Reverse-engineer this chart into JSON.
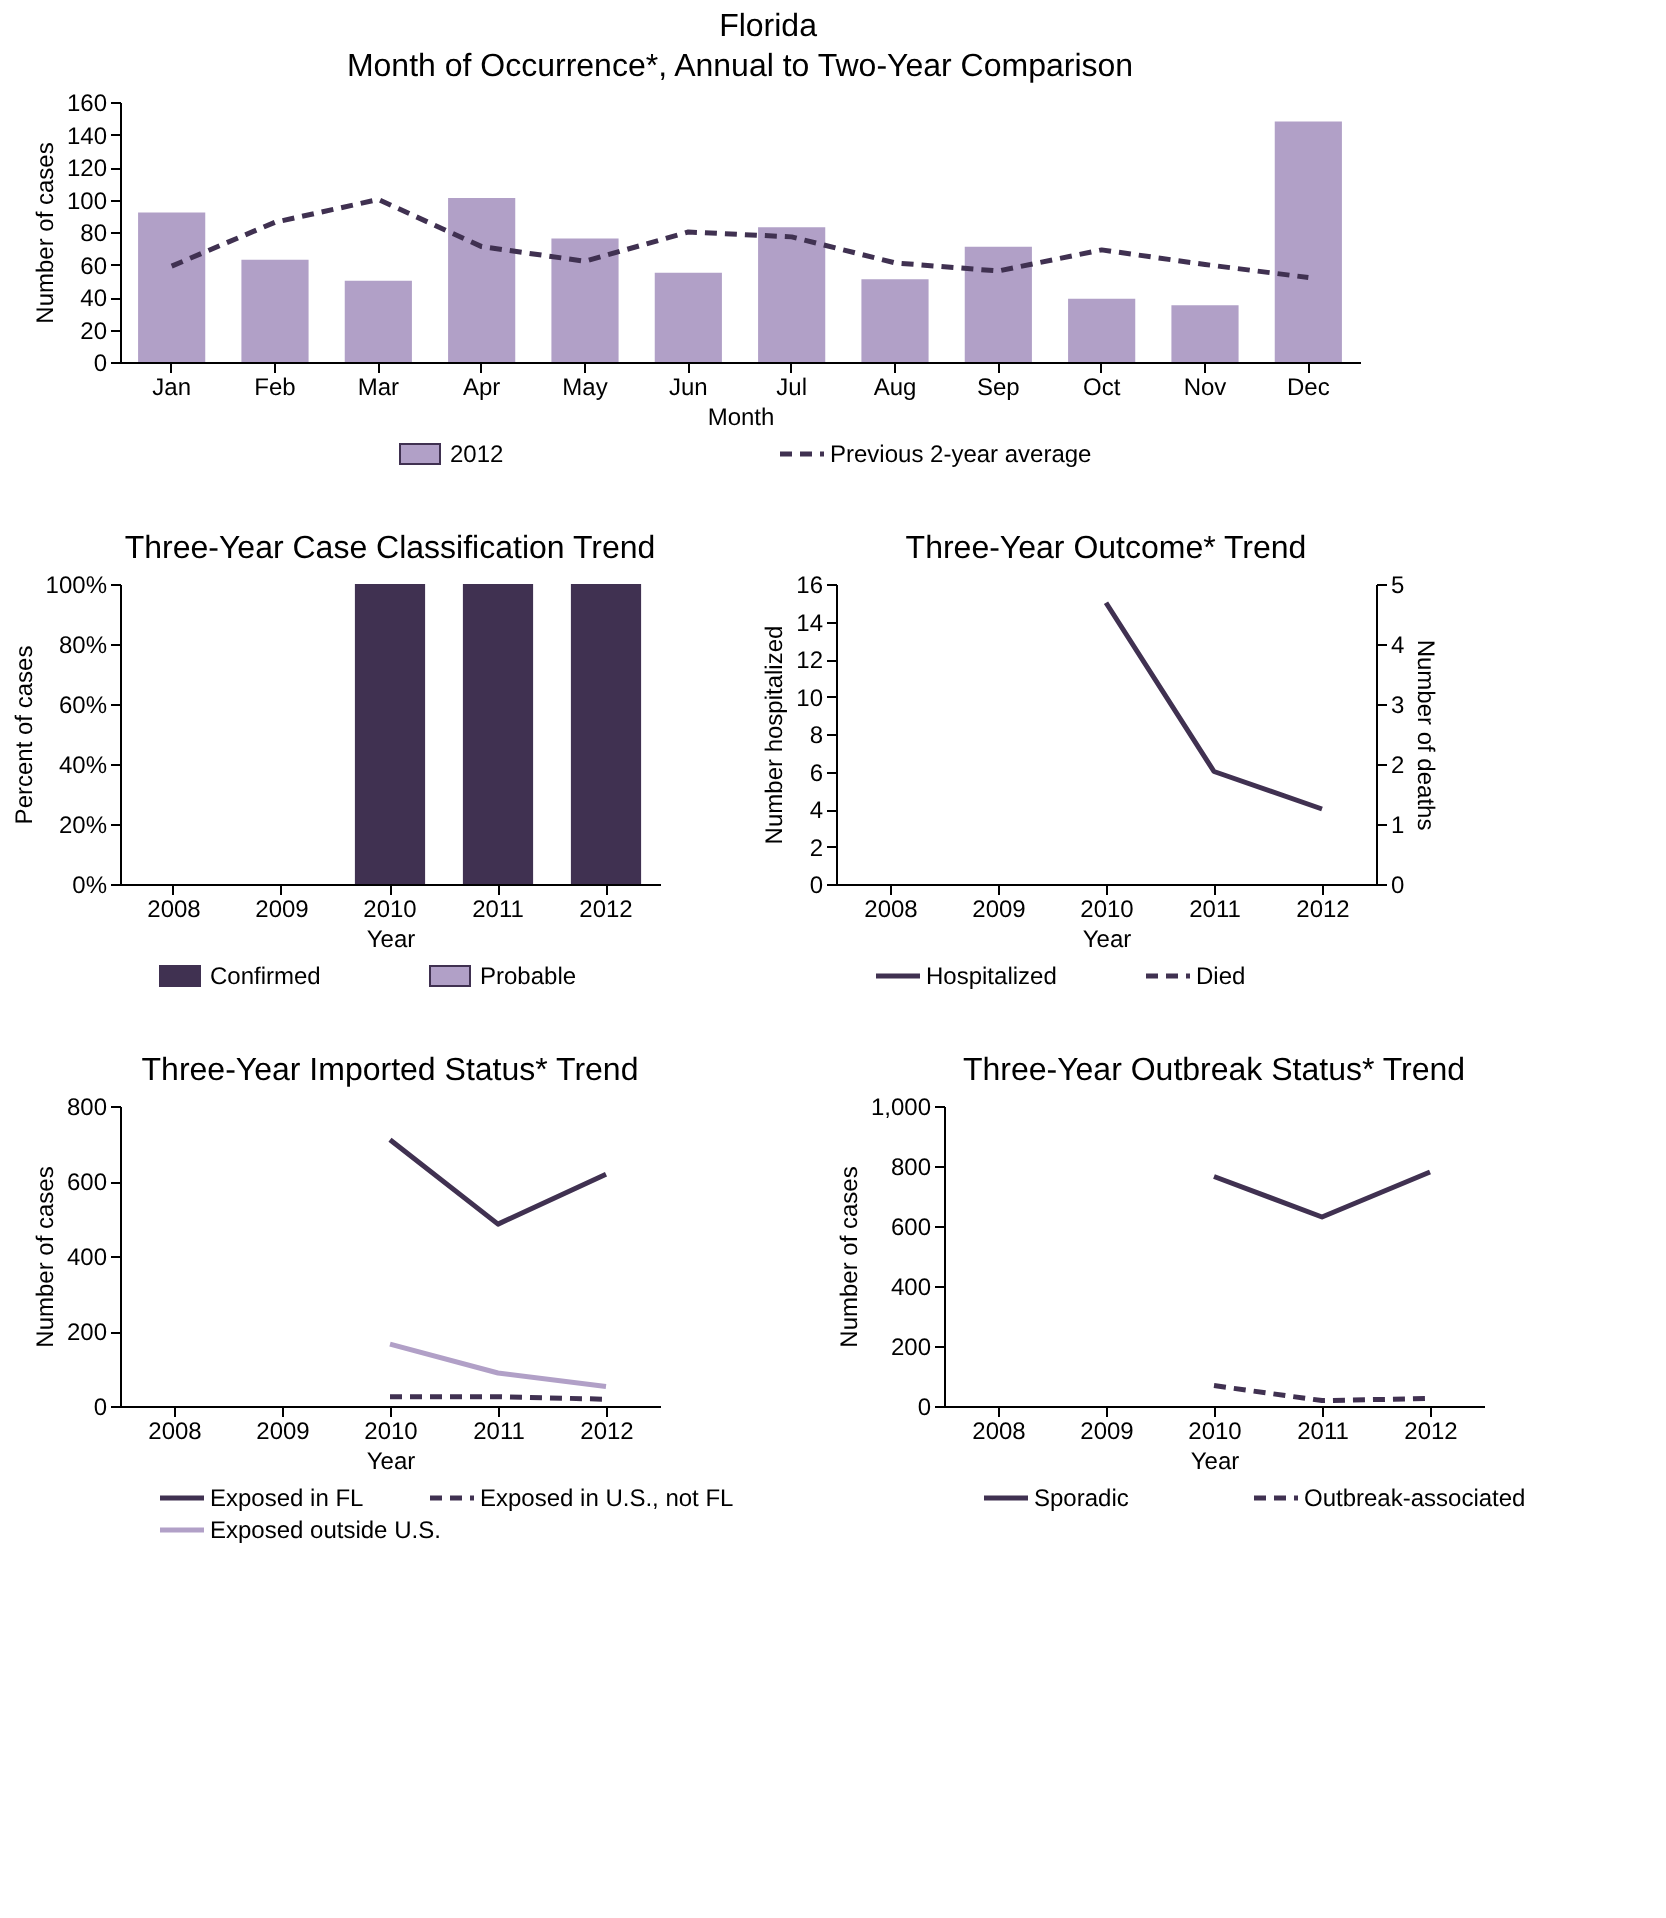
{
  "chart_data": [
    {
      "type": "bar",
      "title": "Month of Occurrence*, Annual to Two-Year Comparison",
      "annotations": [
        "Florida"
      ],
      "xlabel": "Month",
      "ylabel": "Number of cases",
      "categories": [
        "Jan",
        "Feb",
        "Mar",
        "Apr",
        "May",
        "Jun",
        "Jul",
        "Aug",
        "Sep",
        "Oct",
        "Nov",
        "Dec"
      ],
      "series": [
        {
          "name": "2012",
          "type": "bar",
          "color": "#b1a0c7",
          "values": [
            92,
            63,
            50,
            101,
            76,
            55,
            83,
            51,
            71,
            39,
            35,
            148
          ]
        },
        {
          "name": "Previous 2-year average",
          "type": "line",
          "line_style": "dashed",
          "color": "#403151",
          "values": [
            59,
            86,
            100,
            71,
            62,
            80,
            77,
            61,
            56,
            69,
            60,
            52
          ]
        }
      ],
      "ylim": [
        0,
        160
      ],
      "yticks": [
        0,
        20,
        40,
        60,
        80,
        100,
        120,
        140,
        160
      ],
      "legend": "bottom"
    },
    {
      "type": "bar",
      "stacked": true,
      "title": "Three-Year Case Classification Trend",
      "xlabel": "Year",
      "ylabel": "Percent of cases",
      "categories": [
        "2008",
        "2009",
        "2010",
        "2011",
        "2012"
      ],
      "series": [
        {
          "name": "Confirmed",
          "color": "#403151",
          "values": [
            null,
            null,
            100,
            100,
            100
          ]
        },
        {
          "name": "Probable",
          "color": "#b1a0c7",
          "values": [
            null,
            null,
            0,
            0,
            0
          ]
        }
      ],
      "ylim": [
        0,
        100
      ],
      "yticks": [
        {
          "value": 0,
          "label": "0%"
        },
        {
          "value": 20,
          "label": "20%"
        },
        {
          "value": 40,
          "label": "40%"
        },
        {
          "value": 60,
          "label": "60%"
        },
        {
          "value": 80,
          "label": "80%"
        },
        {
          "value": 100,
          "label": "100%"
        }
      ],
      "legend": "bottom"
    },
    {
      "type": "line",
      "title": "Three-Year Outcome* Trend",
      "xlabel": "Year",
      "ylabel": "Number hospitalized",
      "y2label": "Number of deaths",
      "categories": [
        "2008",
        "2009",
        "2010",
        "2011",
        "2012"
      ],
      "series": [
        {
          "name": "Hospitalized",
          "color": "#403151",
          "line_style": "solid",
          "values": [
            null,
            null,
            15,
            6,
            4
          ]
        },
        {
          "name": "Died",
          "color": "#403151",
          "line_style": "dashed",
          "axis": "y2",
          "values": [
            null,
            null,
            null,
            null,
            null
          ]
        }
      ],
      "ylim": [
        0,
        16
      ],
      "yticks": [
        0,
        2,
        4,
        6,
        8,
        10,
        12,
        14,
        16
      ],
      "y2lim": [
        0,
        5
      ],
      "y2ticks": [
        0,
        1,
        2,
        3,
        4,
        5
      ],
      "legend": "bottom"
    },
    {
      "type": "line",
      "title": "Three-Year Imported Status* Trend",
      "xlabel": "Year",
      "ylabel": "Number of cases",
      "categories": [
        "2008",
        "2009",
        "2010",
        "2011",
        "2012"
      ],
      "series": [
        {
          "name": "Exposed in FL",
          "color": "#403151",
          "line_style": "solid",
          "values": [
            null,
            null,
            710,
            485,
            618
          ]
        },
        {
          "name": "Exposed in U.S., not FL",
          "color": "#403151",
          "line_style": "dashed",
          "values": [
            null,
            null,
            25,
            25,
            18
          ]
        },
        {
          "name": "Exposed outside U.S.",
          "color": "#b1a0c7",
          "line_style": "solid",
          "values": [
            null,
            null,
            165,
            88,
            52
          ]
        }
      ],
      "ylim": [
        0,
        800
      ],
      "yticks": [
        0,
        200,
        400,
        600,
        800
      ],
      "legend": "bottom"
    },
    {
      "type": "line",
      "title": "Three-Year Outbreak Status* Trend",
      "xlabel": "Year",
      "ylabel": "Number of cases",
      "categories": [
        "2008",
        "2009",
        "2010",
        "2011",
        "2012"
      ],
      "series": [
        {
          "name": "Sporadic",
          "color": "#403151",
          "line_style": "solid",
          "values": [
            null,
            null,
            765,
            630,
            780
          ]
        },
        {
          "name": "Outbreak-associated",
          "color": "#403151",
          "line_style": "dashed",
          "values": [
            null,
            null,
            68,
            18,
            25
          ]
        }
      ],
      "ylim": [
        0,
        1000
      ],
      "yticks": [
        0,
        200,
        400,
        600,
        800,
        {
          "value": 1000,
          "label": "1,000"
        }
      ],
      "legend": "bottom"
    }
  ]
}
